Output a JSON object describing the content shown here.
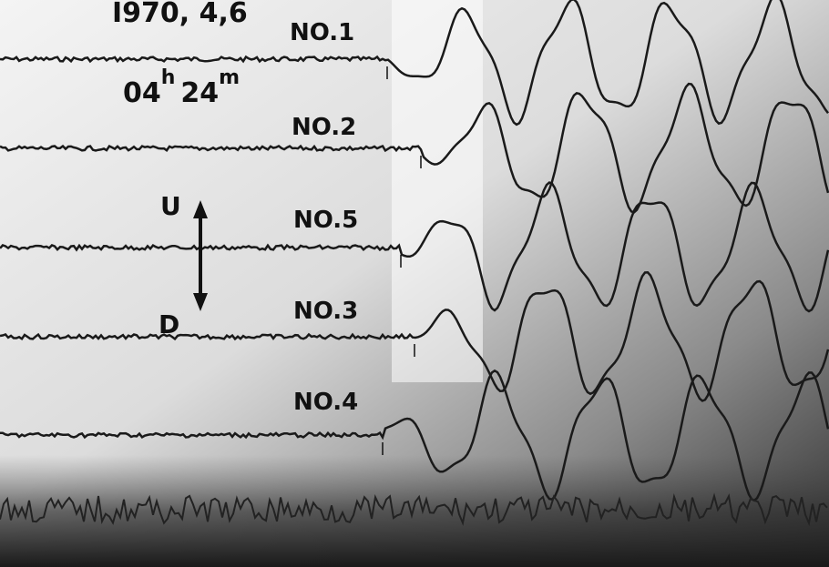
{
  "date": "I970, 4,6",
  "time": {
    "hours": "04",
    "hours_unit": "h",
    "minutes": "24",
    "minutes_unit": "m"
  },
  "traces": [
    {
      "label": "NO.1"
    },
    {
      "label": "NO.2"
    },
    {
      "label": "NO.5"
    },
    {
      "label": "NO.3"
    },
    {
      "label": "NO.4"
    }
  ],
  "direction": {
    "up": "U",
    "down": "D"
  }
}
